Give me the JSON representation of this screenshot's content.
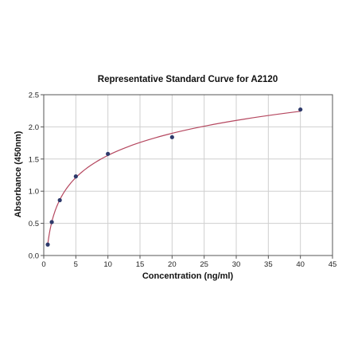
{
  "chart_data": {
    "type": "scatter",
    "title": "Representative Standard Curve for A2120",
    "xlabel": "Concentration (ng/ml)",
    "ylabel": "Absorbance (450nm)",
    "xlim": [
      0,
      45
    ],
    "ylim": [
      0,
      2.5
    ],
    "x_ticks": [
      "0",
      "5",
      "10",
      "15",
      "20",
      "25",
      "30",
      "35",
      "40",
      "45"
    ],
    "y_ticks": [
      "0.0",
      "0.5",
      "1.0",
      "1.5",
      "2.0",
      "2.5"
    ],
    "grid": true,
    "series": [
      {
        "points": [
          {
            "x": 0.625,
            "y": 0.17
          },
          {
            "x": 1.25,
            "y": 0.52
          },
          {
            "x": 2.5,
            "y": 0.86
          },
          {
            "x": 5,
            "y": 1.23
          },
          {
            "x": 10,
            "y": 1.58
          },
          {
            "x": 20,
            "y": 1.84
          },
          {
            "x": 40,
            "y": 2.27
          }
        ],
        "fit_curve": true
      }
    ],
    "colors": {
      "points": "#2e3a6b",
      "curve": "#b5475f",
      "grid": "#cfcfcf",
      "axis": "#555555"
    }
  }
}
